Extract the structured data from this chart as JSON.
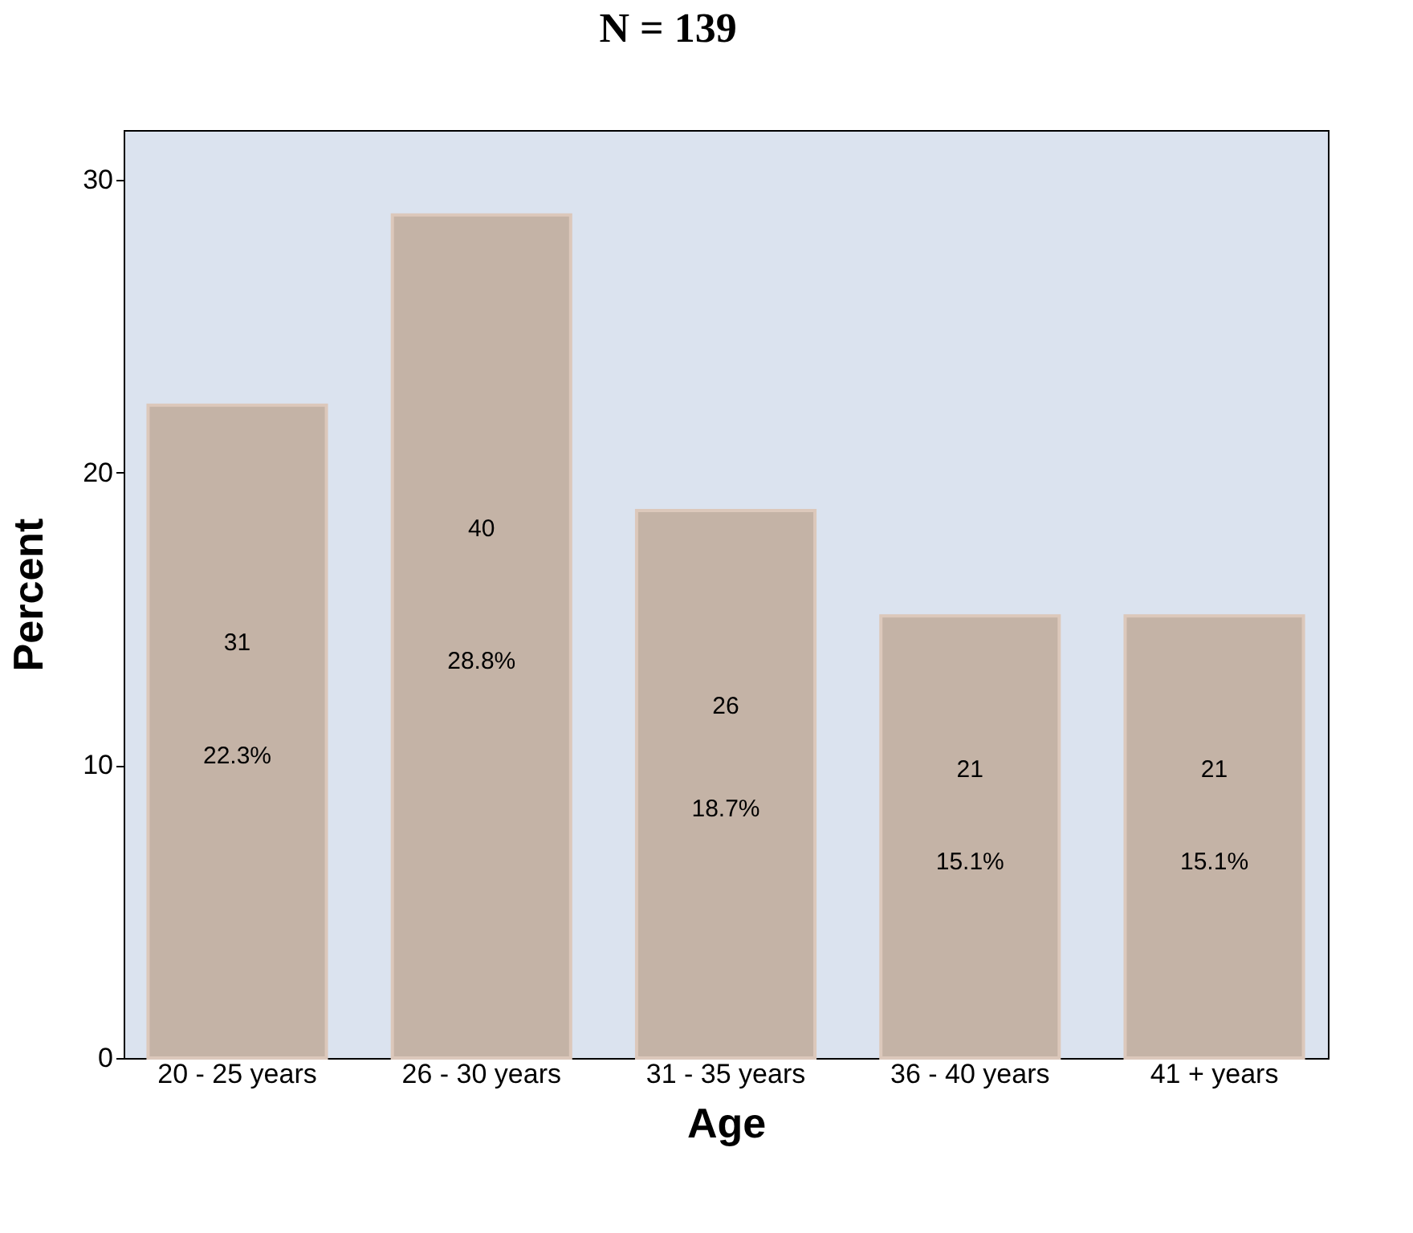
{
  "chart_data": {
    "type": "bar",
    "title": "N = 139",
    "xlabel": "Age",
    "ylabel": "Percent",
    "categories": [
      "20 - 25 years",
      "26 - 30 years",
      "31 - 35 years",
      "36 - 40 years",
      "41 + years"
    ],
    "values": [
      22.3,
      28.8,
      18.7,
      15.1,
      15.1
    ],
    "color": "#c4b3a6",
    "value_labels": [
      "22.3%",
      "28.8%",
      "18.7%",
      "15.1%",
      "15.1%"
    ],
    "annotations": [
      "31",
      "40",
      "26",
      "21",
      "21"
    ],
    "ylim": [
      0,
      31.7
    ],
    "yticks": [
      0,
      10,
      20,
      30
    ],
    "grid": false
  }
}
